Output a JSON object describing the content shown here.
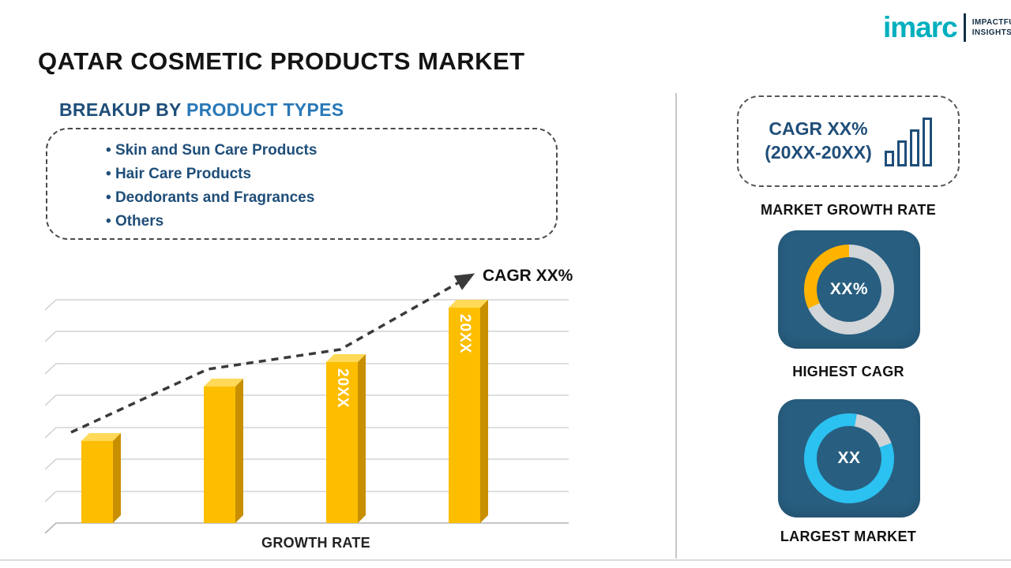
{
  "title": "QATAR COSMETIC PRODUCTS MARKET",
  "logo": {
    "brand": "imarc",
    "tagline_line1": "IMPACTFUL",
    "tagline_line2": "INSIGHTS"
  },
  "breakup": {
    "heading_prefix": "BREAKUP BY ",
    "heading_highlight": "PRODUCT TYPES",
    "items": [
      "Skin and Sun Care Products",
      "Hair Care Products",
      "Deodorants and Fragrances",
      "Others"
    ]
  },
  "chart_data": {
    "type": "bar",
    "categories": [
      "",
      "",
      "20XX",
      "20XX"
    ],
    "values": [
      30,
      50,
      59,
      79
    ],
    "title": "",
    "xlabel": "GROWTH RATE",
    "ylabel": "",
    "ylim": [
      0,
      100
    ],
    "grid": true,
    "legend": "none",
    "trend_annotation": "CAGR XX%",
    "bar_color": "#FFC000"
  },
  "sidebar": {
    "growth_card": {
      "line1": "CAGR XX%",
      "line2": "(20XX-20XX)",
      "caption": "MARKET GROWTH RATE"
    },
    "highest_cagr": {
      "value": "XX%",
      "caption": "HIGHEST CAGR"
    },
    "largest_market": {
      "value": "XX",
      "caption": "LARGEST MARKET"
    }
  },
  "colors": {
    "navy_text": "#1f4e79",
    "highlight_blue": "#2878b8",
    "card_navy": "#285e80",
    "brand_teal": "#00afbe",
    "bar_gold": "#ffc000",
    "bar_side_gold": "#c88f00",
    "donut_yellow": "#ffb300",
    "donut_cyan": "#2bc1f0",
    "ring_gray": "#d2d6d9"
  }
}
